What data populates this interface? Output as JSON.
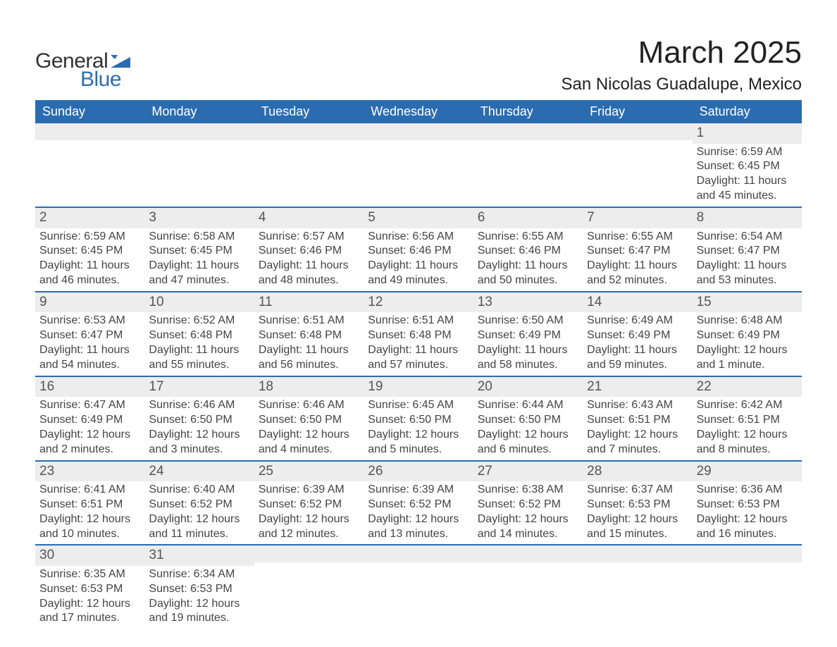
{
  "logo": {
    "word1": "General",
    "word2": "Blue",
    "mark_color": "#2b6cb0",
    "text_color_dark": "#333333"
  },
  "title": "March 2025",
  "location": "San Nicolas Guadalupe, Mexico",
  "header_bg": "#2b6cb0",
  "header_fg": "#ffffff",
  "daynum_bg": "#ededed",
  "row_divider_color": "#2b6cb0",
  "text_color": "#444444",
  "fontsize_title": 44,
  "fontsize_location": 24,
  "fontsize_weekday": 18,
  "fontsize_daynum": 19,
  "fontsize_body": 16,
  "weekdays": [
    "Sunday",
    "Monday",
    "Tuesday",
    "Wednesday",
    "Thursday",
    "Friday",
    "Saturday"
  ],
  "weeks": [
    [
      null,
      null,
      null,
      null,
      null,
      null,
      {
        "n": "1",
        "sunrise": "Sunrise: 6:59 AM",
        "sunset": "Sunset: 6:45 PM",
        "day1": "Daylight: 11 hours",
        "day2": "and 45 minutes."
      }
    ],
    [
      {
        "n": "2",
        "sunrise": "Sunrise: 6:59 AM",
        "sunset": "Sunset: 6:45 PM",
        "day1": "Daylight: 11 hours",
        "day2": "and 46 minutes."
      },
      {
        "n": "3",
        "sunrise": "Sunrise: 6:58 AM",
        "sunset": "Sunset: 6:45 PM",
        "day1": "Daylight: 11 hours",
        "day2": "and 47 minutes."
      },
      {
        "n": "4",
        "sunrise": "Sunrise: 6:57 AM",
        "sunset": "Sunset: 6:46 PM",
        "day1": "Daylight: 11 hours",
        "day2": "and 48 minutes."
      },
      {
        "n": "5",
        "sunrise": "Sunrise: 6:56 AM",
        "sunset": "Sunset: 6:46 PM",
        "day1": "Daylight: 11 hours",
        "day2": "and 49 minutes."
      },
      {
        "n": "6",
        "sunrise": "Sunrise: 6:55 AM",
        "sunset": "Sunset: 6:46 PM",
        "day1": "Daylight: 11 hours",
        "day2": "and 50 minutes."
      },
      {
        "n": "7",
        "sunrise": "Sunrise: 6:55 AM",
        "sunset": "Sunset: 6:47 PM",
        "day1": "Daylight: 11 hours",
        "day2": "and 52 minutes."
      },
      {
        "n": "8",
        "sunrise": "Sunrise: 6:54 AM",
        "sunset": "Sunset: 6:47 PM",
        "day1": "Daylight: 11 hours",
        "day2": "and 53 minutes."
      }
    ],
    [
      {
        "n": "9",
        "sunrise": "Sunrise: 6:53 AM",
        "sunset": "Sunset: 6:47 PM",
        "day1": "Daylight: 11 hours",
        "day2": "and 54 minutes."
      },
      {
        "n": "10",
        "sunrise": "Sunrise: 6:52 AM",
        "sunset": "Sunset: 6:48 PM",
        "day1": "Daylight: 11 hours",
        "day2": "and 55 minutes."
      },
      {
        "n": "11",
        "sunrise": "Sunrise: 6:51 AM",
        "sunset": "Sunset: 6:48 PM",
        "day1": "Daylight: 11 hours",
        "day2": "and 56 minutes."
      },
      {
        "n": "12",
        "sunrise": "Sunrise: 6:51 AM",
        "sunset": "Sunset: 6:48 PM",
        "day1": "Daylight: 11 hours",
        "day2": "and 57 minutes."
      },
      {
        "n": "13",
        "sunrise": "Sunrise: 6:50 AM",
        "sunset": "Sunset: 6:49 PM",
        "day1": "Daylight: 11 hours",
        "day2": "and 58 minutes."
      },
      {
        "n": "14",
        "sunrise": "Sunrise: 6:49 AM",
        "sunset": "Sunset: 6:49 PM",
        "day1": "Daylight: 11 hours",
        "day2": "and 59 minutes."
      },
      {
        "n": "15",
        "sunrise": "Sunrise: 6:48 AM",
        "sunset": "Sunset: 6:49 PM",
        "day1": "Daylight: 12 hours",
        "day2": "and 1 minute."
      }
    ],
    [
      {
        "n": "16",
        "sunrise": "Sunrise: 6:47 AM",
        "sunset": "Sunset: 6:49 PM",
        "day1": "Daylight: 12 hours",
        "day2": "and 2 minutes."
      },
      {
        "n": "17",
        "sunrise": "Sunrise: 6:46 AM",
        "sunset": "Sunset: 6:50 PM",
        "day1": "Daylight: 12 hours",
        "day2": "and 3 minutes."
      },
      {
        "n": "18",
        "sunrise": "Sunrise: 6:46 AM",
        "sunset": "Sunset: 6:50 PM",
        "day1": "Daylight: 12 hours",
        "day2": "and 4 minutes."
      },
      {
        "n": "19",
        "sunrise": "Sunrise: 6:45 AM",
        "sunset": "Sunset: 6:50 PM",
        "day1": "Daylight: 12 hours",
        "day2": "and 5 minutes."
      },
      {
        "n": "20",
        "sunrise": "Sunrise: 6:44 AM",
        "sunset": "Sunset: 6:50 PM",
        "day1": "Daylight: 12 hours",
        "day2": "and 6 minutes."
      },
      {
        "n": "21",
        "sunrise": "Sunrise: 6:43 AM",
        "sunset": "Sunset: 6:51 PM",
        "day1": "Daylight: 12 hours",
        "day2": "and 7 minutes."
      },
      {
        "n": "22",
        "sunrise": "Sunrise: 6:42 AM",
        "sunset": "Sunset: 6:51 PM",
        "day1": "Daylight: 12 hours",
        "day2": "and 8 minutes."
      }
    ],
    [
      {
        "n": "23",
        "sunrise": "Sunrise: 6:41 AM",
        "sunset": "Sunset: 6:51 PM",
        "day1": "Daylight: 12 hours",
        "day2": "and 10 minutes."
      },
      {
        "n": "24",
        "sunrise": "Sunrise: 6:40 AM",
        "sunset": "Sunset: 6:52 PM",
        "day1": "Daylight: 12 hours",
        "day2": "and 11 minutes."
      },
      {
        "n": "25",
        "sunrise": "Sunrise: 6:39 AM",
        "sunset": "Sunset: 6:52 PM",
        "day1": "Daylight: 12 hours",
        "day2": "and 12 minutes."
      },
      {
        "n": "26",
        "sunrise": "Sunrise: 6:39 AM",
        "sunset": "Sunset: 6:52 PM",
        "day1": "Daylight: 12 hours",
        "day2": "and 13 minutes."
      },
      {
        "n": "27",
        "sunrise": "Sunrise: 6:38 AM",
        "sunset": "Sunset: 6:52 PM",
        "day1": "Daylight: 12 hours",
        "day2": "and 14 minutes."
      },
      {
        "n": "28",
        "sunrise": "Sunrise: 6:37 AM",
        "sunset": "Sunset: 6:53 PM",
        "day1": "Daylight: 12 hours",
        "day2": "and 15 minutes."
      },
      {
        "n": "29",
        "sunrise": "Sunrise: 6:36 AM",
        "sunset": "Sunset: 6:53 PM",
        "day1": "Daylight: 12 hours",
        "day2": "and 16 minutes."
      }
    ],
    [
      {
        "n": "30",
        "sunrise": "Sunrise: 6:35 AM",
        "sunset": "Sunset: 6:53 PM",
        "day1": "Daylight: 12 hours",
        "day2": "and 17 minutes."
      },
      {
        "n": "31",
        "sunrise": "Sunrise: 6:34 AM",
        "sunset": "Sunset: 6:53 PM",
        "day1": "Daylight: 12 hours",
        "day2": "and 19 minutes."
      },
      null,
      null,
      null,
      null,
      null
    ]
  ]
}
